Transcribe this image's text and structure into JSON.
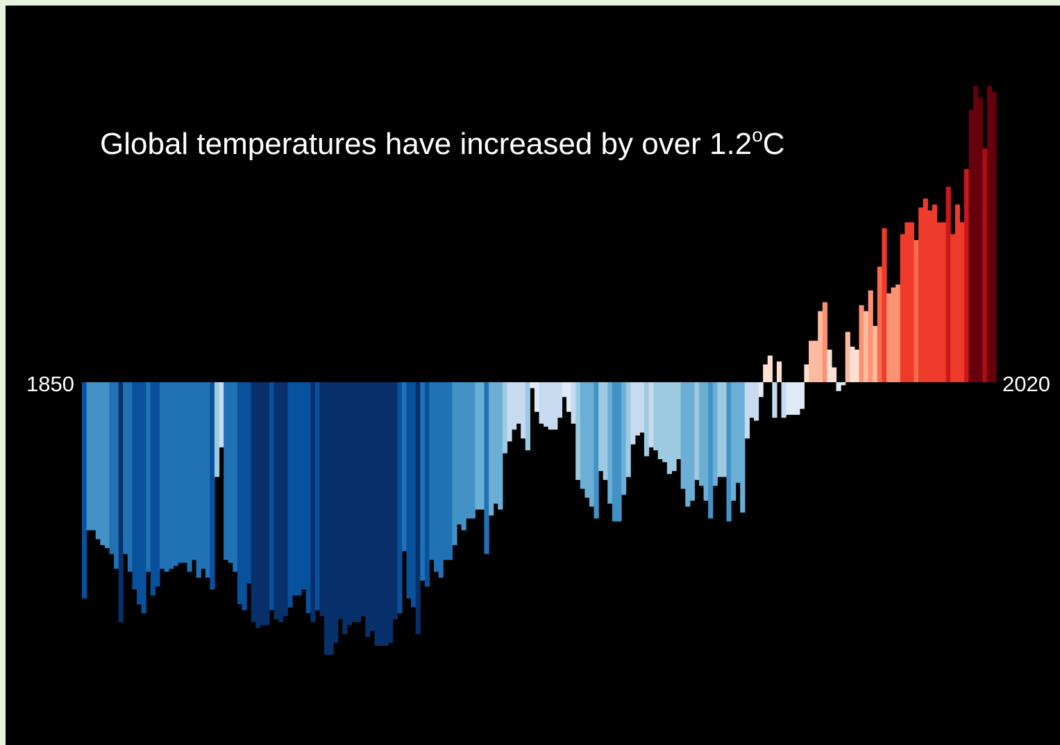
{
  "chart_data": {
    "type": "bar",
    "title_main": "Global temperatures have increased by over 1.2",
    "title_degree": "o",
    "title_unit": "C",
    "x_start_label": "1850",
    "x_end_label": "2020",
    "x_start": 1850,
    "x_end": 2020,
    "ylim": [
      -1.0,
      1.0
    ],
    "values": [
      -0.73,
      -0.5,
      -0.5,
      -0.53,
      -0.55,
      -0.56,
      -0.58,
      -0.63,
      -0.81,
      -0.58,
      -0.64,
      -0.7,
      -0.75,
      -0.78,
      -0.64,
      -0.72,
      -0.69,
      -0.63,
      -0.64,
      -0.63,
      -0.62,
      -0.61,
      -0.61,
      -0.64,
      -0.6,
      -0.66,
      -0.63,
      -0.66,
      -0.7,
      -0.32,
      -0.22,
      -0.6,
      -0.61,
      -0.64,
      -0.75,
      -0.77,
      -0.68,
      -0.81,
      -0.83,
      -0.82,
      -0.82,
      -0.77,
      -0.8,
      -0.81,
      -0.79,
      -0.76,
      -0.72,
      -0.72,
      -0.7,
      -0.78,
      -0.81,
      -0.77,
      -0.79,
      -0.92,
      -0.92,
      -0.88,
      -0.8,
      -0.85,
      -0.82,
      -0.81,
      -0.81,
      -0.79,
      -0.86,
      -0.84,
      -0.89,
      -0.89,
      -0.89,
      -0.88,
      -0.8,
      -0.78,
      -0.57,
      -0.73,
      -0.76,
      -0.85,
      -0.67,
      -0.69,
      -0.6,
      -0.64,
      -0.66,
      -0.6,
      -0.6,
      -0.55,
      -0.48,
      -0.5,
      -0.46,
      -0.46,
      -0.43,
      -0.43,
      -0.58,
      -0.45,
      -0.41,
      -0.43,
      -0.24,
      -0.2,
      -0.16,
      -0.14,
      -0.19,
      -0.23,
      -0.02,
      -0.1,
      -0.14,
      -0.15,
      -0.16,
      -0.16,
      -0.12,
      -0.05,
      -0.1,
      -0.14,
      -0.33,
      -0.36,
      -0.39,
      -0.42,
      -0.46,
      -0.3,
      -0.33,
      -0.41,
      -0.47,
      -0.47,
      -0.38,
      -0.32,
      -0.21,
      -0.18,
      -0.17,
      -0.25,
      -0.22,
      -0.23,
      -0.26,
      -0.27,
      -0.31,
      -0.3,
      -0.26,
      -0.36,
      -0.42,
      -0.4,
      -0.33,
      -0.35,
      -0.4,
      -0.46,
      -0.35,
      -0.32,
      -0.32,
      -0.47,
      -0.4,
      -0.34,
      -0.44,
      -0.19,
      -0.12,
      -0.13,
      -0.05,
      0.06,
      0.09,
      -0.12,
      0.07,
      -0.12,
      -0.11,
      -0.11,
      -0.11,
      -0.09,
      0.06,
      0.14,
      0.14,
      0.24,
      0.27,
      0.11,
      0.05,
      -0.03,
      -0.01,
      0.17,
      0.12,
      0.11,
      0.26,
      0.24,
      0.31,
      0.19,
      0.39,
      0.52,
      0.3,
      0.32,
      0.33,
      0.5,
      0.54,
      0.54,
      0.48,
      0.59,
      0.62,
      0.58,
      0.6,
      0.54,
      0.54,
      0.66,
      0.5,
      0.6,
      0.54,
      0.72,
      0.92,
      1.0,
      0.96,
      0.79,
      1.0,
      0.98
    ]
  },
  "colors": {
    "background": "#000000",
    "outer_frame": "#e6f2e0",
    "text": "#ffffff"
  }
}
